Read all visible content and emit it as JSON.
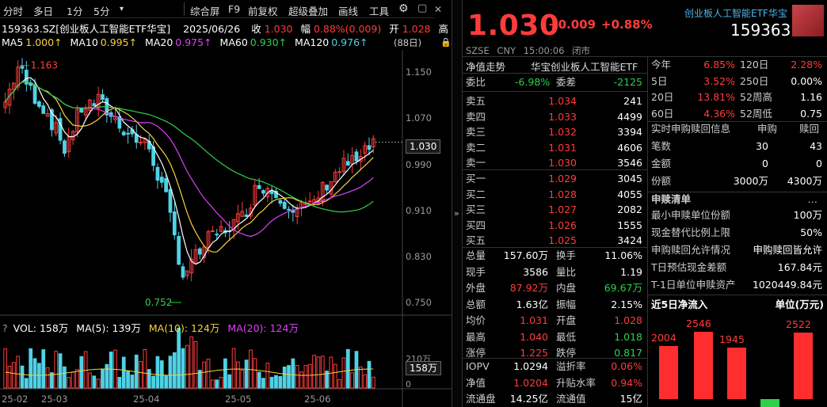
{
  "toolbar": {
    "items": [
      "分时",
      "多日",
      "1分",
      "5分",
      "▾",
      "综合屏",
      "F9",
      "前复权",
      "超级叠加",
      "画线",
      "工具"
    ]
  },
  "info_line": {
    "code": "159363.SZ[创业板人工智能ETF华宝]",
    "date": "2025/06/26",
    "close_label": "收",
    "close": "1.030",
    "change_label": "幅",
    "change": "0.88%(0.009)",
    "open_label": "开",
    "open": "1.028",
    "extra": "高"
  },
  "ma_line": {
    "ma5": "MA5",
    "ma5_v": "1.000↑",
    "ma10": "MA10",
    "ma10_v": "0.995↑",
    "ma20": "MA20",
    "ma20_v": "0.975↑",
    "ma60": "MA60",
    "ma60_v": "0.930↑",
    "ma120": "MA120",
    "ma120_v": "0.976↑",
    "days": "(88日)"
  },
  "price_axis": [
    "1.150",
    "1.070",
    "0.990",
    "0.910",
    "0.830",
    "0.750"
  ],
  "annotations": {
    "high": "1.163",
    "low": "0.752",
    "current": "1.030"
  },
  "vol_line": {
    "vol": "VOL: 158万",
    "ma5": "MA(5): 139万",
    "ma10": "MA(10): 124万",
    "ma20": "MA(20): 124万"
  },
  "vol_axis": {
    "top": "210万",
    "zero": "0",
    "current": "158万"
  },
  "date_axis": [
    "25-02",
    "25-03",
    "25-04",
    "25-05",
    "25-06"
  ],
  "chart_data": {
    "type": "candlestick",
    "price_range": [
      0.73,
      1.19
    ],
    "high": 1.163,
    "low": 0.752,
    "last": 1.03
  },
  "quote": {
    "price": "1.030",
    "change": "+0.009",
    "pct": "+0.88%",
    "market": "SZSE",
    "currency": "CNY",
    "time": "15:00:06",
    "status": "闭市",
    "name": "创业板人工智能ETF华宝",
    "code": "159363"
  },
  "order": {
    "tab1": "净值走势",
    "tab2": "华宝创业板人工智能ETF",
    "weibi_l": "委比",
    "weibi": "-6.98%",
    "weicha_l": "委差",
    "weicha": "-2125",
    "asks": [
      {
        "l": "卖五",
        "p": "1.034",
        "v": "241"
      },
      {
        "l": "卖四",
        "p": "1.033",
        "v": "4499"
      },
      {
        "l": "卖三",
        "p": "1.032",
        "v": "3394"
      },
      {
        "l": "卖二",
        "p": "1.031",
        "v": "4606"
      },
      {
        "l": "卖一",
        "p": "1.030",
        "v": "3546"
      }
    ],
    "bids": [
      {
        "l": "买一",
        "p": "1.029",
        "v": "3045"
      },
      {
        "l": "买二",
        "p": "1.028",
        "v": "4055"
      },
      {
        "l": "买三",
        "p": "1.027",
        "v": "2082"
      },
      {
        "l": "买四",
        "p": "1.026",
        "v": "1555"
      },
      {
        "l": "买五",
        "p": "1.025",
        "v": "3424"
      }
    ]
  },
  "stats": [
    {
      "l1": "总量",
      "v1": "157.60万",
      "c1": "wht",
      "l2": "换手",
      "v2": "11.06%",
      "c2": "wht"
    },
    {
      "l1": "现手",
      "v1": "3586",
      "c1": "wht",
      "l2": "量比",
      "v2": "1.19",
      "c2": "wht"
    },
    {
      "l1": "外盘",
      "v1": "87.92万",
      "c1": "red",
      "l2": "内盘",
      "v2": "69.67万",
      "c2": "green"
    },
    {
      "l1": "总额",
      "v1": "1.63亿",
      "c1": "wht",
      "l2": "振幅",
      "v2": "2.15%",
      "c2": "wht"
    },
    {
      "l1": "均价",
      "v1": "1.031",
      "c1": "red",
      "l2": "开盘",
      "v2": "1.028",
      "c2": "red"
    },
    {
      "l1": "最高",
      "v1": "1.040",
      "c1": "red",
      "l2": "最低",
      "v2": "1.018",
      "c2": "green"
    },
    {
      "l1": "涨停",
      "v1": "1.225",
      "c1": "red",
      "l2": "跌停",
      "v2": "0.817",
      "c2": "green"
    }
  ],
  "stats2": [
    {
      "l1": "IOPV",
      "v1": "1.0294",
      "c1": "wht",
      "l2": "溢折率",
      "v2": "0.06%",
      "c2": "red"
    },
    {
      "l1": "净值",
      "v1": "1.0204",
      "c1": "red",
      "l2": "升贴水率",
      "v2": "0.94%",
      "c2": "red"
    },
    {
      "l1": "流通盘",
      "v1": "14.25亿",
      "c1": "wht",
      "l2": "流通值",
      "v2": "15亿",
      "c2": "wht"
    }
  ],
  "perf": [
    {
      "l1": "今年",
      "v1": "6.85%",
      "c1": "red",
      "l2": "120日",
      "v2": "2.28%",
      "c2": "red"
    },
    {
      "l1": "5日",
      "v1": "3.52%",
      "c1": "red",
      "l2": "250日",
      "v2": "0.00%",
      "c2": "wht"
    },
    {
      "l1": "20日",
      "v1": "13.81%",
      "c1": "red",
      "l2": "52周高",
      "v2": "1.16",
      "c2": "wht"
    },
    {
      "l1": "60日",
      "v1": "4.36%",
      "c1": "red",
      "l2": "52周低",
      "v2": "0.75",
      "c2": "wht"
    }
  ],
  "redeem": {
    "title": "实时申购赎回信息",
    "h1": "申购",
    "h2": "赎回",
    "rows": [
      {
        "l": "笔数",
        "a": "30",
        "b": "43"
      },
      {
        "l": "金额",
        "a": "0",
        "b": "0"
      },
      {
        "l": "份额",
        "a": "3000万",
        "b": "4300万"
      }
    ]
  },
  "list": {
    "title": "申赎清单",
    "more": "…",
    "rows": [
      {
        "l": "最小申赎单位份额",
        "v": "100万"
      },
      {
        "l": "现金替代比例上限",
        "v": "50%"
      },
      {
        "l": "申购赎回允许情况",
        "v": "申购赎回皆允许"
      },
      {
        "l": "T日预估现金差额",
        "v": "167.84元"
      },
      {
        "l": "T-1日单位申赎资产",
        "v": "1020449.84元"
      }
    ]
  },
  "flow": {
    "title": "近5日净流入",
    "unit": "单位(万元)",
    "values": [
      2004,
      2546,
      1945,
      0,
      2522
    ],
    "labels": [
      "2004",
      "2546",
      "1945",
      "",
      "2522"
    ]
  }
}
